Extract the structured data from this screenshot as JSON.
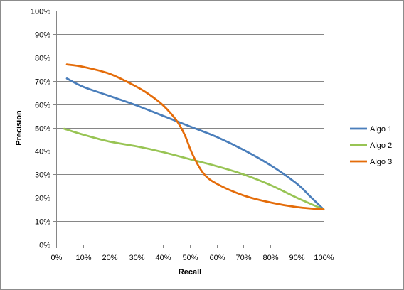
{
  "chart_data": {
    "type": "line",
    "title": "",
    "xlabel": "Recall",
    "ylabel": "Precision",
    "xlim": [
      0,
      100
    ],
    "ylim": [
      0,
      100
    ],
    "x_ticks": [
      "0%",
      "10%",
      "20%",
      "30%",
      "40%",
      "50%",
      "60%",
      "70%",
      "80%",
      "90%",
      "100%"
    ],
    "y_ticks": [
      "0%",
      "10%",
      "20%",
      "30%",
      "40%",
      "50%",
      "60%",
      "70%",
      "80%",
      "90%",
      "100%"
    ],
    "grid": "horizontal",
    "legend_position": "right",
    "series": [
      {
        "name": "Algo 1",
        "color": "#4a7ebb",
        "points": [
          [
            4,
            71
          ],
          [
            10,
            67.5
          ],
          [
            20,
            63.5
          ],
          [
            30,
            59.5
          ],
          [
            40,
            55
          ],
          [
            50,
            50.5
          ],
          [
            60,
            46
          ],
          [
            70,
            40.5
          ],
          [
            80,
            34
          ],
          [
            90,
            26
          ],
          [
            95,
            20.5
          ],
          [
            100,
            15
          ]
        ]
      },
      {
        "name": "Algo 2",
        "color": "#98c454",
        "points": [
          [
            3,
            49.5
          ],
          [
            10,
            47
          ],
          [
            20,
            44
          ],
          [
            30,
            42
          ],
          [
            40,
            39.5
          ],
          [
            50,
            36.5
          ],
          [
            60,
            33.5
          ],
          [
            70,
            30
          ],
          [
            80,
            25.5
          ],
          [
            90,
            20
          ],
          [
            100,
            15
          ]
        ]
      },
      {
        "name": "Algo 3",
        "color": "#e46c0a",
        "points": [
          [
            4,
            77
          ],
          [
            10,
            76
          ],
          [
            20,
            73
          ],
          [
            30,
            67.5
          ],
          [
            35,
            64
          ],
          [
            40,
            59.5
          ],
          [
            45,
            53
          ],
          [
            48,
            47
          ],
          [
            51,
            38.5
          ],
          [
            55,
            30.5
          ],
          [
            60,
            26
          ],
          [
            70,
            21
          ],
          [
            80,
            18
          ],
          [
            90,
            16
          ],
          [
            100,
            15
          ]
        ]
      }
    ]
  }
}
